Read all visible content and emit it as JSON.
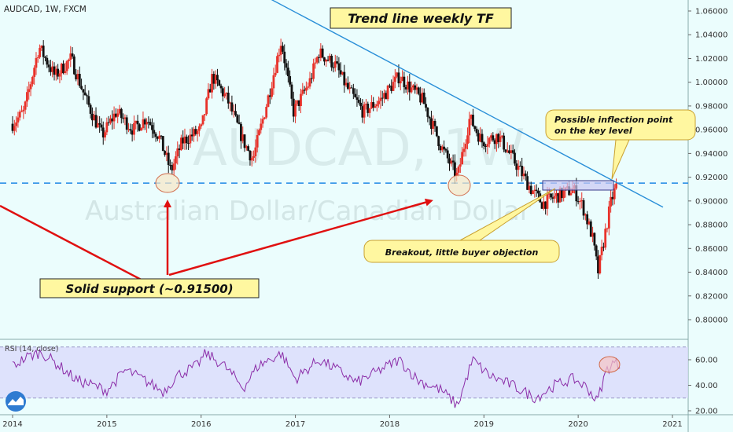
{
  "symbol_line": "AUDCAD, 1W, FXCM",
  "watermark": {
    "big": "AUDCAD, 1W",
    "small": "Australian Dollar/Canadian Dollar"
  },
  "annotations": {
    "title_box": "Trend line weekly TF",
    "support_box": "Solid support (~0.91500)",
    "breakout_box": "Breakout, little buyer objection",
    "inflection_line1": "Possible inflection point",
    "inflection_line2": "on the key level"
  },
  "rsi_label": "RSI (14, close)",
  "colors": {
    "background": "#ebfdfd",
    "bull_candle": "#e8322a",
    "bear_candle": "#111111",
    "trend_line": "#2a8fd8",
    "support_line": "#1e88e5",
    "rsi_line": "#8b2da8",
    "rsi_band": "#dad8fb",
    "arrow": "#e01010",
    "callout_fill": "#fff7a0"
  },
  "chart_data": [
    {
      "type": "candlestick",
      "title": "AUDCAD, 1W, FXCM",
      "timeframe": "1W",
      "x_ticks": [
        "2014",
        "2015",
        "2016",
        "2017",
        "2018",
        "2019",
        "2020",
        "2021"
      ],
      "y_ticks": [
        "1.06000",
        "1.04000",
        "1.02000",
        "1.00000",
        "0.98000",
        "0.96000",
        "0.94000",
        "0.92000",
        "0.90000",
        "0.88000",
        "0.86000",
        "0.84000",
        "0.82000",
        "0.80000"
      ],
      "ylim": [
        0.79,
        1.065
      ],
      "support_level": 0.915,
      "trend_line": [
        {
          "date": 2016.5,
          "price": 1.08
        },
        {
          "date": 2020.3,
          "price": 0.92
        }
      ],
      "anchors": [
        {
          "date": 2014.0,
          "price": 0.965
        },
        {
          "date": 2014.12,
          "price": 0.975
        },
        {
          "date": 2014.28,
          "price": 1.03
        },
        {
          "date": 2014.45,
          "price": 1.005
        },
        {
          "date": 2014.62,
          "price": 1.02
        },
        {
          "date": 2014.78,
          "price": 0.985
        },
        {
          "date": 2014.95,
          "price": 0.955
        },
        {
          "date": 2015.1,
          "price": 0.975
        },
        {
          "date": 2015.28,
          "price": 0.96
        },
        {
          "date": 2015.42,
          "price": 0.97
        },
        {
          "date": 2015.55,
          "price": 0.955
        },
        {
          "date": 2015.68,
          "price": 0.925
        },
        {
          "date": 2015.8,
          "price": 0.95
        },
        {
          "date": 2016.0,
          "price": 0.96
        },
        {
          "date": 2016.12,
          "price": 1.005
        },
        {
          "date": 2016.28,
          "price": 0.985
        },
        {
          "date": 2016.45,
          "price": 0.95
        },
        {
          "date": 2016.55,
          "price": 0.935
        },
        {
          "date": 2016.72,
          "price": 0.99
        },
        {
          "date": 2016.85,
          "price": 1.035
        },
        {
          "date": 2016.98,
          "price": 0.975
        },
        {
          "date": 2017.15,
          "price": 1.0
        },
        {
          "date": 2017.25,
          "price": 1.025
        },
        {
          "date": 2017.42,
          "price": 1.015
        },
        {
          "date": 2017.55,
          "price": 0.995
        },
        {
          "date": 2017.72,
          "price": 0.975
        },
        {
          "date": 2017.9,
          "price": 0.985
        },
        {
          "date": 2018.1,
          "price": 1.005
        },
        {
          "date": 2018.22,
          "price": 0.995
        },
        {
          "date": 2018.35,
          "price": 0.985
        },
        {
          "date": 2018.55,
          "price": 0.945
        },
        {
          "date": 2018.72,
          "price": 0.92
        },
        {
          "date": 2018.85,
          "price": 0.97
        },
        {
          "date": 2018.98,
          "price": 0.95
        },
        {
          "date": 2019.15,
          "price": 0.955
        },
        {
          "date": 2019.35,
          "price": 0.93
        },
        {
          "date": 2019.5,
          "price": 0.91
        },
        {
          "date": 2019.62,
          "price": 0.898
        },
        {
          "date": 2019.8,
          "price": 0.905
        },
        {
          "date": 2019.95,
          "price": 0.91
        },
        {
          "date": 2020.05,
          "price": 0.895
        },
        {
          "date": 2020.15,
          "price": 0.87
        },
        {
          "date": 2020.21,
          "price": 0.84
        },
        {
          "date": 2020.28,
          "price": 0.87
        },
        {
          "date": 2020.35,
          "price": 0.9
        },
        {
          "date": 2020.42,
          "price": 0.916
        }
      ]
    },
    {
      "type": "line",
      "title": "RSI (14, close)",
      "y_ticks": [
        "60.00",
        "40.00",
        "20.00"
      ],
      "ylim": [
        20,
        76
      ],
      "band": [
        30,
        70
      ],
      "anchors": [
        {
          "date": 2014.0,
          "value": 55
        },
        {
          "date": 2014.15,
          "value": 62
        },
        {
          "date": 2014.3,
          "value": 66
        },
        {
          "date": 2014.5,
          "value": 55
        },
        {
          "date": 2014.68,
          "value": 44
        },
        {
          "date": 2014.85,
          "value": 40
        },
        {
          "date": 2015.0,
          "value": 36
        },
        {
          "date": 2015.2,
          "value": 52
        },
        {
          "date": 2015.4,
          "value": 44
        },
        {
          "date": 2015.6,
          "value": 35
        },
        {
          "date": 2015.75,
          "value": 48
        },
        {
          "date": 2015.95,
          "value": 55
        },
        {
          "date": 2016.05,
          "value": 65
        },
        {
          "date": 2016.25,
          "value": 55
        },
        {
          "date": 2016.45,
          "value": 38
        },
        {
          "date": 2016.6,
          "value": 55
        },
        {
          "date": 2016.85,
          "value": 65
        },
        {
          "date": 2017.0,
          "value": 45
        },
        {
          "date": 2017.25,
          "value": 60
        },
        {
          "date": 2017.45,
          "value": 52
        },
        {
          "date": 2017.65,
          "value": 42
        },
        {
          "date": 2017.9,
          "value": 52
        },
        {
          "date": 2018.1,
          "value": 60
        },
        {
          "date": 2018.3,
          "value": 44
        },
        {
          "date": 2018.55,
          "value": 36
        },
        {
          "date": 2018.72,
          "value": 24
        },
        {
          "date": 2018.88,
          "value": 60
        },
        {
          "date": 2019.05,
          "value": 48
        },
        {
          "date": 2019.3,
          "value": 40
        },
        {
          "date": 2019.55,
          "value": 30
        },
        {
          "date": 2019.75,
          "value": 40
        },
        {
          "date": 2019.95,
          "value": 45
        },
        {
          "date": 2020.1,
          "value": 38
        },
        {
          "date": 2020.2,
          "value": 27
        },
        {
          "date": 2020.3,
          "value": 52
        },
        {
          "date": 2020.38,
          "value": 58
        },
        {
          "date": 2020.45,
          "value": 55
        }
      ]
    }
  ]
}
